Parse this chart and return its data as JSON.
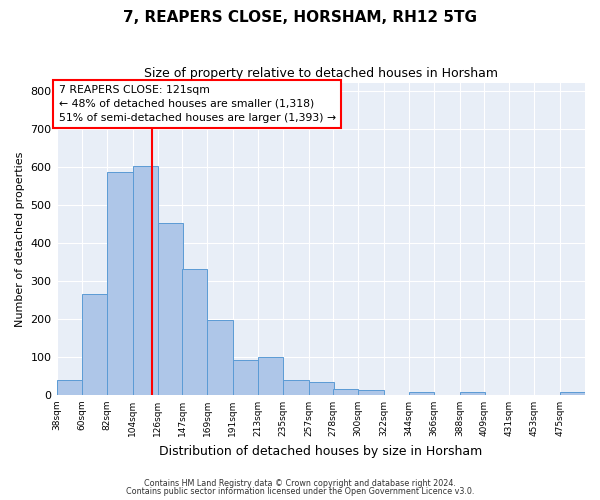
{
  "title": "7, REAPERS CLOSE, HORSHAM, RH12 5TG",
  "subtitle": "Size of property relative to detached houses in Horsham",
  "xlabel": "Distribution of detached houses by size in Horsham",
  "ylabel": "Number of detached properties",
  "bin_labels": [
    "38sqm",
    "60sqm",
    "82sqm",
    "104sqm",
    "126sqm",
    "147sqm",
    "169sqm",
    "191sqm",
    "213sqm",
    "235sqm",
    "257sqm",
    "278sqm",
    "300sqm",
    "322sqm",
    "344sqm",
    "366sqm",
    "388sqm",
    "409sqm",
    "431sqm",
    "453sqm",
    "475sqm"
  ],
  "bar_left_edges": [
    38,
    60,
    82,
    104,
    126,
    147,
    169,
    191,
    213,
    235,
    257,
    278,
    300,
    322,
    344,
    366,
    388,
    409,
    431,
    453,
    475
  ],
  "bar_heights": [
    38,
    265,
    585,
    603,
    452,
    330,
    196,
    91,
    101,
    38,
    33,
    16,
    12,
    0,
    7,
    0,
    7,
    0,
    0,
    0,
    7
  ],
  "bar_color": "#aec6e8",
  "bar_edge_color": "#5b9bd5",
  "vline_x": 121,
  "vline_color": "red",
  "annotation_title": "7 REAPERS CLOSE: 121sqm",
  "annotation_line1": "← 48% of detached houses are smaller (1,318)",
  "annotation_line2": "51% of semi-detached houses are larger (1,393) →",
  "ylim": [
    0,
    820
  ],
  "yticks": [
    0,
    100,
    200,
    300,
    400,
    500,
    600,
    700,
    800
  ],
  "footer1": "Contains HM Land Registry data © Crown copyright and database right 2024.",
  "footer2": "Contains public sector information licensed under the Open Government Licence v3.0.",
  "plot_bg_color": "#e8eef7",
  "outer_bg_color": "#ffffff",
  "grid_color": "#ffffff",
  "bin_width": 22
}
